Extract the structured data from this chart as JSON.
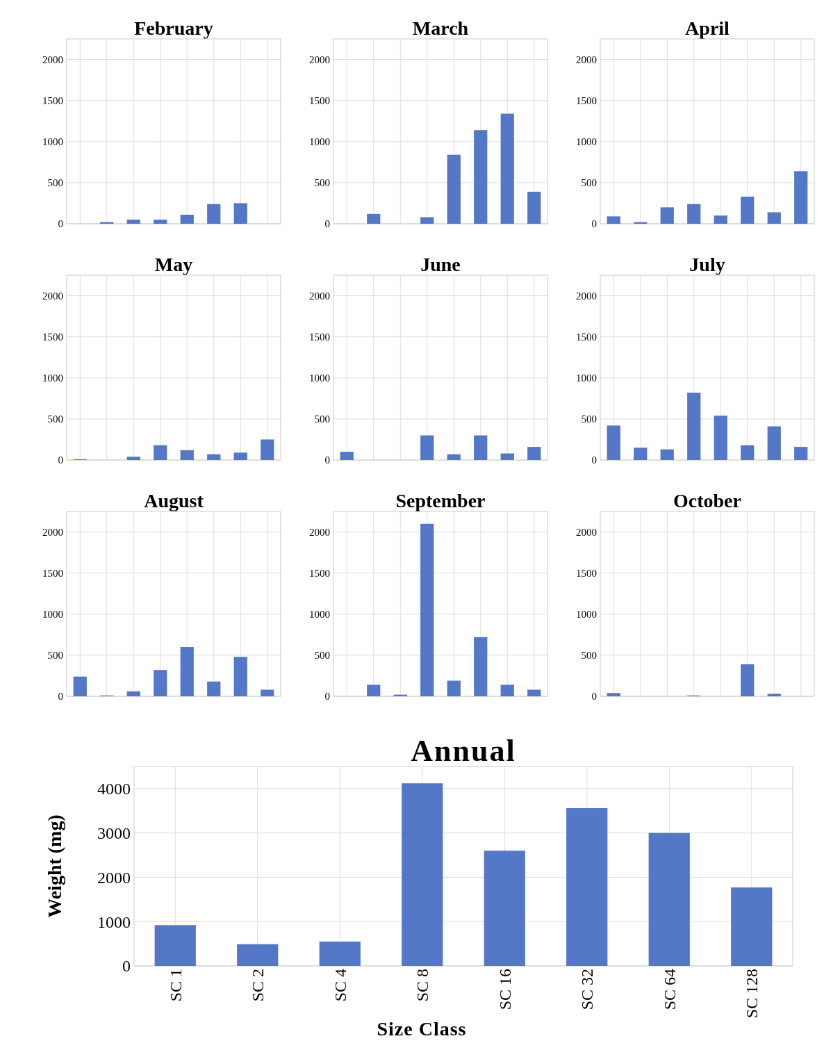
{
  "chart_data": [
    {
      "type": "bar",
      "title": "February",
      "categories": [
        null,
        null,
        null,
        null,
        null,
        null,
        null,
        null
      ],
      "values": [
        0,
        20,
        50,
        50,
        110,
        240,
        250,
        0
      ],
      "color": "#5577c8",
      "ylim": [
        0,
        2250
      ],
      "yticks": [
        0,
        500,
        1000,
        1500,
        2000
      ],
      "grid": true,
      "tick_labels": "y"
    },
    {
      "type": "bar",
      "title": "March",
      "categories": [
        null,
        null,
        null,
        null,
        null,
        null,
        null,
        null
      ],
      "values": [
        0,
        120,
        0,
        80,
        840,
        1140,
        1340,
        390
      ],
      "color": "#5577c8",
      "ylim": [
        0,
        2250
      ],
      "yticks": [
        0,
        500,
        1000,
        1500,
        2000
      ],
      "grid": true,
      "tick_labels": "y"
    },
    {
      "type": "bar",
      "title": "April",
      "categories": [
        null,
        null,
        null,
        null,
        null,
        null,
        null,
        null
      ],
      "values": [
        90,
        20,
        200,
        240,
        100,
        330,
        140,
        640
      ],
      "color": "#5577c8",
      "ylim": [
        0,
        2250
      ],
      "yticks": [
        0,
        500,
        1000,
        1500,
        2000
      ],
      "grid": true,
      "tick_labels": "y"
    },
    {
      "type": "bar",
      "title": "May",
      "categories": [
        null,
        null,
        null,
        null,
        null,
        null,
        null,
        null
      ],
      "values": [
        10,
        0,
        40,
        180,
        120,
        70,
        90,
        250
      ],
      "color": "#5577c8",
      "ylim": [
        0,
        2250
      ],
      "yticks": [
        0,
        500,
        1000,
        1500,
        2000
      ],
      "grid": true,
      "tick_labels": "y"
    },
    {
      "type": "bar",
      "title": "June",
      "categories": [
        null,
        null,
        null,
        null,
        null,
        null,
        null,
        null
      ],
      "values": [
        100,
        0,
        0,
        300,
        70,
        300,
        80,
        160
      ],
      "color": "#5577c8",
      "ylim": [
        0,
        2250
      ],
      "yticks": [
        0,
        500,
        1000,
        1500,
        2000
      ],
      "grid": true,
      "tick_labels": "y"
    },
    {
      "type": "bar",
      "title": "July",
      "categories": [
        null,
        null,
        null,
        null,
        null,
        null,
        null,
        null
      ],
      "values": [
        420,
        150,
        130,
        820,
        540,
        180,
        410,
        160
      ],
      "color": "#5577c8",
      "ylim": [
        0,
        2250
      ],
      "yticks": [
        0,
        500,
        1000,
        1500,
        2000
      ],
      "grid": true,
      "tick_labels": "y"
    },
    {
      "type": "bar",
      "title": "August",
      "categories": [
        null,
        null,
        null,
        null,
        null,
        null,
        null,
        null
      ],
      "values": [
        240,
        10,
        60,
        320,
        600,
        180,
        480,
        80
      ],
      "color": "#5577c8",
      "ylim": [
        0,
        2250
      ],
      "yticks": [
        0,
        500,
        1000,
        1500,
        2000
      ],
      "grid": true,
      "tick_labels": "y"
    },
    {
      "type": "bar",
      "title": "September",
      "categories": [
        null,
        null,
        null,
        null,
        null,
        null,
        null,
        null
      ],
      "values": [
        0,
        140,
        20,
        2100,
        190,
        720,
        140,
        80
      ],
      "color": "#5577c8",
      "ylim": [
        0,
        2250
      ],
      "yticks": [
        0,
        500,
        1000,
        1500,
        2000
      ],
      "grid": true,
      "tick_labels": "y"
    },
    {
      "type": "bar",
      "title": "October",
      "categories": [
        null,
        null,
        null,
        null,
        null,
        null,
        null,
        null
      ],
      "values": [
        40,
        0,
        0,
        10,
        0,
        390,
        30,
        0
      ],
      "color": "#5577c8",
      "ylim": [
        0,
        2250
      ],
      "yticks": [
        0,
        500,
        1000,
        1500,
        2000
      ],
      "grid": true,
      "tick_labels": "y"
    },
    {
      "type": "bar",
      "title": "Annual",
      "xlabel": "Size Class",
      "ylabel": "Weight (mg)",
      "categories": [
        "SC 1",
        "SC 2",
        "SC 4",
        "SC 8",
        "SC 16",
        "SC 32",
        "SC 64",
        "SC 128"
      ],
      "values": [
        920,
        490,
        550,
        4120,
        2600,
        3560,
        3000,
        1770
      ],
      "color": "#5577c8",
      "ylim": [
        0,
        4500
      ],
      "yticks": [
        0,
        1000,
        2000,
        3000,
        4000
      ],
      "grid": true
    }
  ]
}
